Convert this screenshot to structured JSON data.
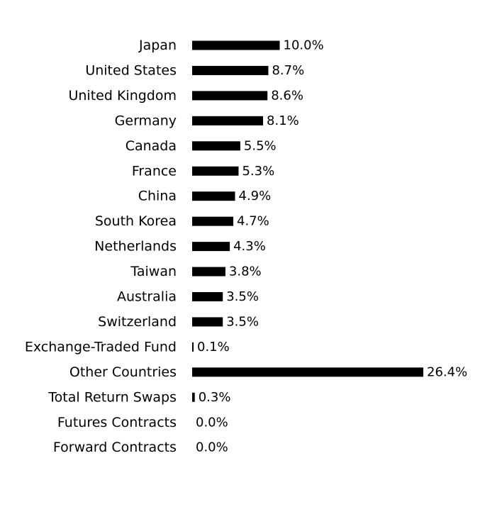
{
  "chart_data": {
    "type": "bar",
    "orientation": "horizontal",
    "categories": [
      "Japan",
      "United States",
      "United Kingdom",
      "Germany",
      "Canada",
      "France",
      "China",
      "South Korea",
      "Netherlands",
      "Taiwan",
      "Australia",
      "Switzerland",
      "Exchange-Traded Fund",
      "Other Countries",
      "Total Return Swaps",
      "Futures Contracts",
      "Forward Contracts"
    ],
    "values": [
      10.0,
      8.7,
      8.6,
      8.1,
      5.5,
      5.3,
      4.9,
      4.7,
      4.3,
      3.8,
      3.5,
      3.5,
      0.1,
      26.4,
      0.3,
      0.0,
      0.0
    ],
    "value_labels": [
      "10.0%",
      "8.7%",
      "8.6%",
      "8.1%",
      "5.5%",
      "5.3%",
      "4.9%",
      "4.7%",
      "4.3%",
      "3.8%",
      "3.5%",
      "3.5%",
      "0.1%",
      "26.4%",
      "0.3%",
      "0.0%",
      "0.0%"
    ],
    "bar_color": "#000000",
    "grid": false,
    "legend": "none"
  }
}
